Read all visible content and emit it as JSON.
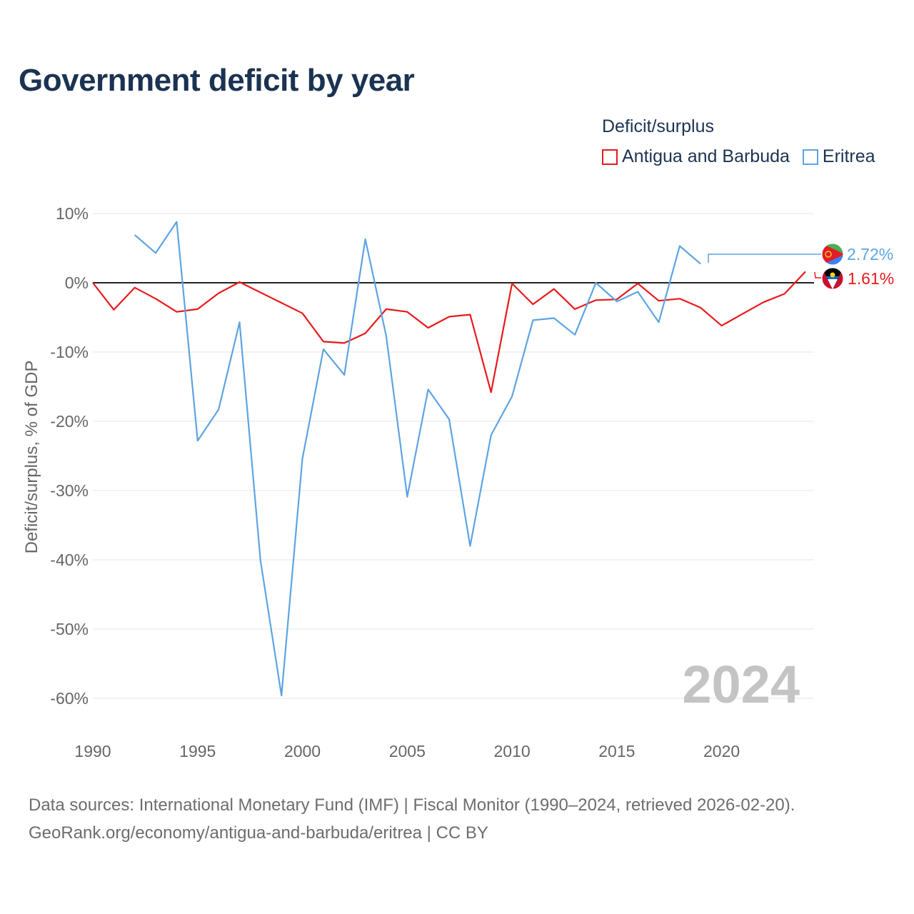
{
  "page": {
    "title": "Government deficit by year",
    "legend_title": "Deficit/surplus",
    "year_watermark": "2024",
    "source_line": "Data sources: International Monetary Fund (IMF) | Fiscal Monitor (1990–2024, retrieved 2026-02-20).",
    "credit_line": "GeoRank.org/economy/antigua-and-barbuda/eritrea | CC BY"
  },
  "chart_data": {
    "type": "line",
    "title": "Government deficit by year",
    "xlabel": "",
    "ylabel": "Deficit/surplus, % of GDP",
    "xlim": [
      1990,
      2024
    ],
    "ylim": [
      -64,
      10
    ],
    "xticks": [
      1990,
      1995,
      2000,
      2005,
      2010,
      2015,
      2020
    ],
    "xtick_labels": [
      "1990",
      "1995",
      "2000",
      "2005",
      "2010",
      "2015",
      "2020"
    ],
    "yticks": [
      10,
      0,
      -10,
      -20,
      -30,
      -40,
      -50,
      -60
    ],
    "ytick_labels": [
      "10%",
      "0%",
      "-10%",
      "-20%",
      "-30%",
      "-40%",
      "-50%",
      "-60%"
    ],
    "grid": true,
    "legend_position": "top-right",
    "series": [
      {
        "name": "Antigua and Barbuda",
        "color": "#e8191c",
        "end_label": "1.61%",
        "flag": "antigua-flag-icon",
        "x": [
          1990,
          1991,
          1992,
          1993,
          1994,
          1995,
          1996,
          1997,
          1998,
          1999,
          2000,
          2001,
          2002,
          2003,
          2004,
          2005,
          2006,
          2007,
          2008,
          2009,
          2010,
          2011,
          2012,
          2013,
          2014,
          2015,
          2016,
          2017,
          2018,
          2019,
          2020,
          2021,
          2022,
          2023,
          2024
        ],
        "values": [
          0.0,
          -3.9,
          -0.7,
          -2.3,
          -4.2,
          -3.8,
          -1.5,
          0.1,
          -1.4,
          -2.9,
          -4.4,
          -8.5,
          -8.7,
          -7.3,
          -3.8,
          -4.2,
          -6.5,
          -4.9,
          -4.6,
          -15.8,
          -0.1,
          -3.1,
          -0.9,
          -3.8,
          -2.5,
          -2.4,
          -0.1,
          -2.6,
          -2.3,
          -3.6,
          -6.2,
          -4.5,
          -2.8,
          -1.6,
          1.61
        ]
      },
      {
        "name": "Eritrea",
        "color": "#5da4e3",
        "end_label": "2.72%",
        "flag": "eritrea-flag-icon",
        "x": [
          1992,
          1993,
          1994,
          1995,
          1996,
          1997,
          1998,
          1999,
          2000,
          2001,
          2002,
          2003,
          2004,
          2005,
          2006,
          2007,
          2008,
          2009,
          2010,
          2011,
          2012,
          2013,
          2014,
          2015,
          2016,
          2017,
          2018,
          2019
        ],
        "values": [
          6.9,
          4.3,
          8.8,
          -22.8,
          -18.3,
          -5.7,
          -40.1,
          -59.6,
          -25.4,
          -9.6,
          -13.3,
          6.3,
          -7.7,
          -30.9,
          -15.4,
          -19.7,
          -38.0,
          -22.0,
          -16.4,
          -5.4,
          -5.1,
          -7.5,
          0.0,
          -2.7,
          -1.3,
          -5.7,
          5.3,
          2.72
        ]
      }
    ]
  }
}
